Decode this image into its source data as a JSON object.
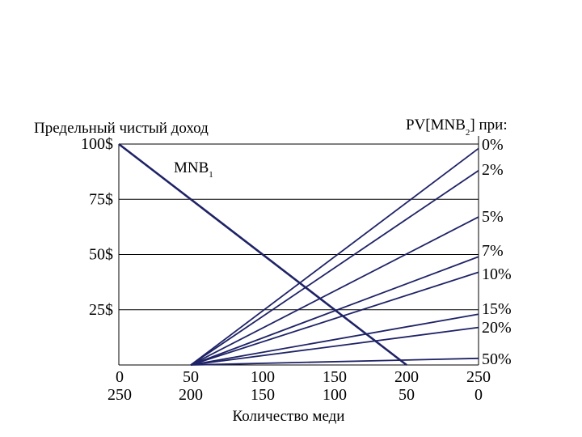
{
  "chart_data": {
    "type": "line",
    "title": "",
    "ylabel": "Предельный чистый доход",
    "xlabel": "Количество меди",
    "y_ticks": [
      "100$",
      "75$",
      "50$",
      "25$"
    ],
    "y_values": [
      100,
      75,
      50,
      25
    ],
    "ylim": [
      0,
      100
    ],
    "x_ticks": [
      {
        "top": "0",
        "bottom": "250"
      },
      {
        "top": "50",
        "bottom": "200"
      },
      {
        "top": "100",
        "bottom": "150"
      },
      {
        "top": "150",
        "bottom": "100"
      },
      {
        "top": "200",
        "bottom": "50"
      },
      {
        "top": "250",
        "bottom": "0"
      }
    ],
    "xlim": [
      0,
      250
    ],
    "grid": true,
    "mnb_label": "MNB",
    "mnb_sub": "1",
    "mnb_series": {
      "name": "MNB1",
      "x": [
        0,
        200
      ],
      "y": [
        100,
        0
      ]
    },
    "pv_header_main": "PV[MNB",
    "pv_header_sub": "2",
    "pv_header_rest": "] при:",
    "pv_series": [
      {
        "name": "0%",
        "end_y": 98
      },
      {
        "name": "2%",
        "end_y": 88
      },
      {
        "name": "5%",
        "end_y": 67
      },
      {
        "name": "7%",
        "end_y": 49
      },
      {
        "name": "10%",
        "end_y": 42
      },
      {
        "name": "15%",
        "end_y": 23
      },
      {
        "name": "20%",
        "end_y": 17
      },
      {
        "name": "50%",
        "end_y": 3
      }
    ],
    "pv_start_x": 50,
    "pv_end_x": 250
  }
}
